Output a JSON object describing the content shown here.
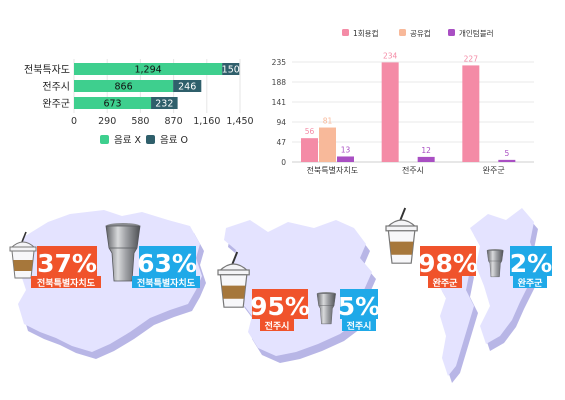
{
  "chart_data": [
    {
      "type": "bar",
      "orientation": "horizontal",
      "stacked": true,
      "categories": [
        "전북특자도",
        "전주시",
        "완주군"
      ],
      "series": [
        {
          "name": "음료 X",
          "values": [
            1294,
            866,
            673
          ],
          "labels": [
            "1,294",
            "866",
            "673"
          ],
          "color": "#3ecf8e"
        },
        {
          "name": "음료 O",
          "values": [
            150,
            246,
            232
          ],
          "labels": [
            "150",
            "246",
            "232"
          ],
          "color": "#2f5f6b"
        }
      ],
      "xlim": [
        0,
        1450
      ],
      "xticks": [
        "0",
        "290",
        "580",
        "870",
        "1,160",
        "1,450"
      ],
      "legend_position": "bottom"
    },
    {
      "type": "bar",
      "orientation": "vertical",
      "categories": [
        "전북특별자치도",
        "전주시",
        "완주군"
      ],
      "series": [
        {
          "name": "1회용컵",
          "values": [
            56,
            234,
            227
          ],
          "color": "#f48ba6"
        },
        {
          "name": "공유컵",
          "values": [
            81,
            0,
            0
          ],
          "color": "#f8b99a"
        },
        {
          "name": "개인텀블러",
          "values": [
            13,
            12,
            5
          ],
          "color": "#a94fc3"
        }
      ],
      "ylim": [
        0,
        235
      ],
      "yticks": [
        "0",
        "47",
        "94",
        "141",
        "188",
        "235"
      ],
      "grid": true,
      "legend_position": "top"
    }
  ],
  "infographic": [
    {
      "region": "전북특별자치도",
      "disposable_pct": "37%",
      "tumbler_pct": "63%"
    },
    {
      "region": "전주시",
      "disposable_pct": "95%",
      "tumbler_pct": "5%"
    },
    {
      "region": "완주군",
      "disposable_pct": "98%",
      "tumbler_pct": "2%"
    }
  ],
  "colors": {
    "disposable_badge": "#f0532b",
    "tumbler_badge": "#1fa9e8",
    "map_fill": "#e4e3ff",
    "map_shadow": "#b8b6e6"
  },
  "icons": [
    "disposable-cup-icon",
    "tumbler-icon",
    "region-map-shape"
  ]
}
